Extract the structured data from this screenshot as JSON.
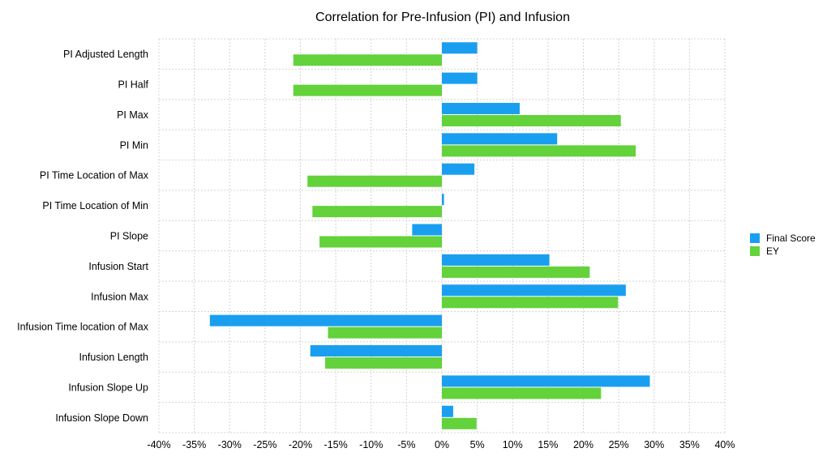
{
  "chart_data": {
    "type": "bar",
    "orientation": "horizontal",
    "title": "Correlation for Pre-Infusion (PI) and Infusion",
    "categories": [
      "PI Adjusted Length",
      "PI Half",
      "PI Max",
      "PI Min",
      "PI Time Location of Max",
      "PI Time Location of Min",
      "PI Slope",
      "Infusion Start",
      "Infusion Max",
      "Infusion Time location of Max",
      "Infusion Length",
      "Infusion Slope Up",
      "Infusion Slope Down"
    ],
    "series": [
      {
        "name": "Final Score",
        "color": "#1a9ff0",
        "values": [
          5.0,
          5.0,
          11.0,
          16.3,
          4.6,
          0.3,
          -4.2,
          15.2,
          26.0,
          -32.8,
          -18.6,
          29.4,
          1.6
        ]
      },
      {
        "name": "EY",
        "color": "#63d23b",
        "values": [
          -21.0,
          -21.0,
          25.3,
          27.4,
          -19.0,
          -18.3,
          -17.3,
          20.9,
          24.9,
          -16.1,
          -16.5,
          22.5,
          4.9
        ]
      }
    ],
    "xlim": [
      -40,
      40
    ],
    "x_ticks": [
      "-40%",
      "-35%",
      "-30%",
      "-25%",
      "-20%",
      "-15%",
      "-10%",
      "-5%",
      "0%",
      "5%",
      "10%",
      "15%",
      "20%",
      "25%",
      "30%",
      "35%",
      "40%"
    ],
    "grid": true,
    "legend_position": "right"
  }
}
